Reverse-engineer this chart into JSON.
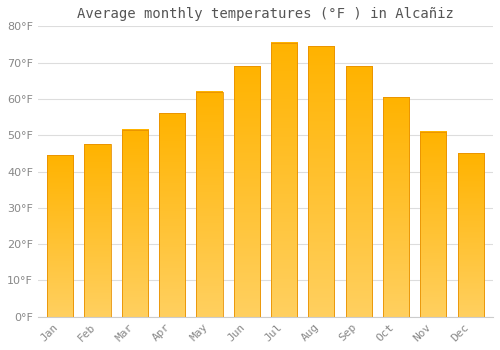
{
  "title": "Average monthly temperatures (°F ) in Alcañiz",
  "months": [
    "Jan",
    "Feb",
    "Mar",
    "Apr",
    "May",
    "Jun",
    "Jul",
    "Aug",
    "Sep",
    "Oct",
    "Nov",
    "Dec"
  ],
  "values": [
    44.5,
    47.5,
    51.5,
    56,
    62,
    69,
    75.5,
    74.5,
    69,
    60.5,
    51,
    45
  ],
  "bar_color_top": "#FFB300",
  "bar_color_bottom": "#FFD060",
  "bar_edge_color": "#E89000",
  "background_color": "#FFFFFF",
  "grid_color": "#DDDDDD",
  "text_color": "#888888",
  "title_color": "#555555",
  "ylim": [
    0,
    80
  ],
  "yticks": [
    0,
    10,
    20,
    30,
    40,
    50,
    60,
    70,
    80
  ],
  "title_fontsize": 10,
  "tick_fontsize": 8,
  "bar_width": 0.7
}
